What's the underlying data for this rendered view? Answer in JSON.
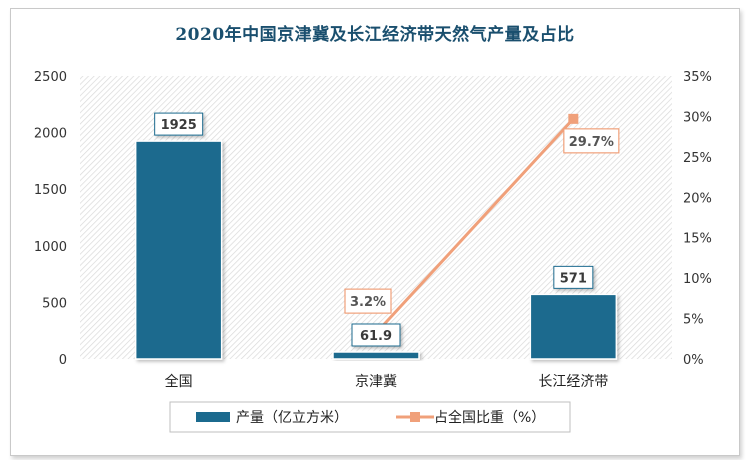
{
  "chart_data": {
    "type": "bar",
    "title": "2020年中国京津冀及长江经济带天然气产量及占比",
    "categories": [
      "全国",
      "京津冀",
      "长江经济带"
    ],
    "series": [
      {
        "name": "产量（亿立方米）",
        "type": "bar",
        "axis": "left",
        "values": [
          1925,
          61.9,
          571
        ],
        "labels": [
          "1925",
          "61.9",
          "571"
        ],
        "color": "#1b6a8e"
      },
      {
        "name": "占全国比重（%）",
        "type": "line",
        "axis": "right",
        "values": [
          null,
          3.2,
          29.7
        ],
        "labels": [
          null,
          "3.2%",
          "29.7%"
        ],
        "color": "#f0a07a"
      }
    ],
    "y_left": {
      "min": 0,
      "max": 2500,
      "ticks": [
        "0",
        "500",
        "1000",
        "1500",
        "2000",
        "2500"
      ]
    },
    "y_right": {
      "min": 0,
      "max": 35,
      "ticks": [
        "0%",
        "5%",
        "10%",
        "15%",
        "20%",
        "25%",
        "30%",
        "35%"
      ]
    },
    "grid": false,
    "legend_position": "bottom"
  }
}
